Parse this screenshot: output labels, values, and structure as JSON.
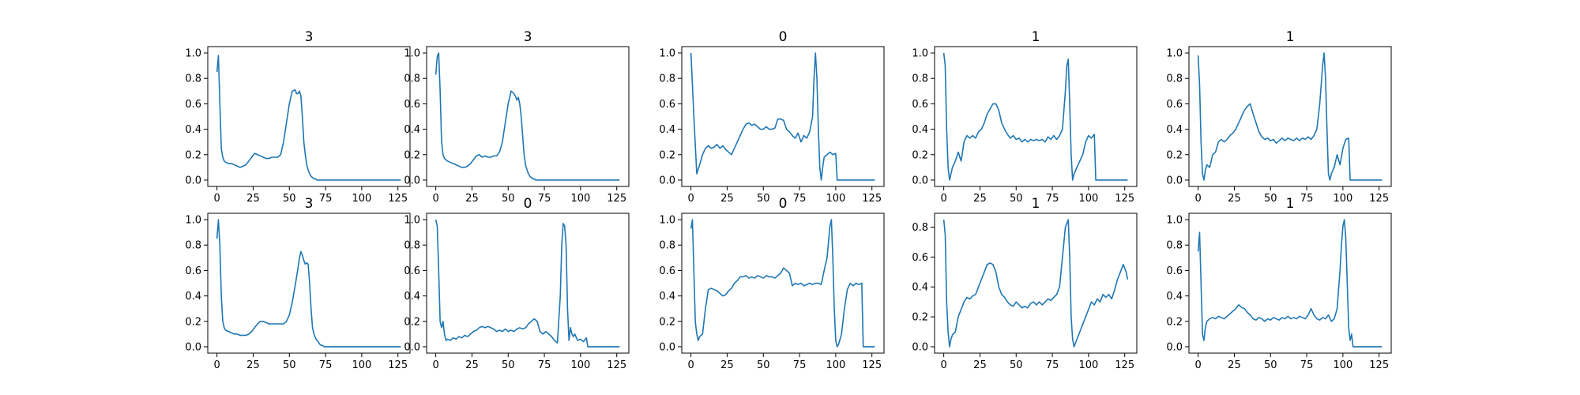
{
  "figure": {
    "line_color": "#1f77b4",
    "axes_color": "#000000"
  },
  "chart_data": [
    {
      "type": "line",
      "title": "3",
      "xlim": [
        -6.35,
        133.35
      ],
      "ylim": [
        -0.05,
        1.05
      ],
      "xticks": [
        "0",
        "25",
        "50",
        "75",
        "100",
        "125"
      ],
      "yticks": [
        "0.0",
        "0.2",
        "0.4",
        "0.6",
        "0.8",
        "1.0"
      ],
      "x": [
        0,
        1,
        2,
        3,
        4,
        5,
        6,
        8,
        10,
        12,
        14,
        16,
        18,
        20,
        22,
        24,
        26,
        28,
        30,
        32,
        34,
        36,
        38,
        40,
        42,
        44,
        46,
        48,
        50,
        52,
        54,
        55,
        56,
        57,
        58,
        59,
        60,
        61,
        62,
        63,
        64,
        65,
        66,
        67,
        68,
        69,
        70,
        71,
        72,
        127
      ],
      "y": [
        0.85,
        0.98,
        0.6,
        0.25,
        0.18,
        0.15,
        0.14,
        0.13,
        0.13,
        0.12,
        0.11,
        0.1,
        0.11,
        0.12,
        0.15,
        0.18,
        0.21,
        0.2,
        0.19,
        0.18,
        0.17,
        0.17,
        0.18,
        0.18,
        0.18,
        0.2,
        0.3,
        0.45,
        0.6,
        0.7,
        0.71,
        0.68,
        0.68,
        0.7,
        0.66,
        0.5,
        0.3,
        0.2,
        0.12,
        0.08,
        0.05,
        0.03,
        0.02,
        0.01,
        0.01,
        0.0,
        0.0,
        0.0,
        0.0,
        0.0
      ]
    },
    {
      "type": "line",
      "title": "3",
      "xlim": [
        -6.35,
        133.35
      ],
      "ylim": [
        -0.05,
        1.05
      ],
      "xticks": [
        "0",
        "25",
        "50",
        "75",
        "100",
        "125"
      ],
      "yticks": [
        "0.0",
        "0.2",
        "0.4",
        "0.6",
        "0.8",
        "1.0"
      ],
      "x": [
        0,
        1,
        2,
        3,
        4,
        5,
        6,
        8,
        10,
        12,
        14,
        16,
        18,
        20,
        22,
        24,
        26,
        28,
        30,
        32,
        34,
        36,
        38,
        40,
        42,
        44,
        46,
        48,
        50,
        52,
        54,
        55,
        56,
        57,
        58,
        59,
        60,
        61,
        62,
        63,
        64,
        65,
        66,
        67,
        68,
        69,
        70,
        71,
        72,
        127
      ],
      "y": [
        0.83,
        0.97,
        1.0,
        0.7,
        0.3,
        0.2,
        0.17,
        0.15,
        0.14,
        0.13,
        0.12,
        0.11,
        0.1,
        0.1,
        0.11,
        0.13,
        0.16,
        0.19,
        0.2,
        0.18,
        0.19,
        0.18,
        0.18,
        0.19,
        0.19,
        0.22,
        0.3,
        0.45,
        0.6,
        0.7,
        0.68,
        0.66,
        0.63,
        0.65,
        0.6,
        0.5,
        0.35,
        0.2,
        0.12,
        0.08,
        0.05,
        0.03,
        0.02,
        0.01,
        0.01,
        0.0,
        0.0,
        0.0,
        0.0,
        0.0
      ]
    },
    {
      "type": "line",
      "title": "0",
      "xlim": [
        -6.35,
        133.35
      ],
      "ylim": [
        -0.05,
        1.05
      ],
      "xticks": [
        "0",
        "25",
        "50",
        "75",
        "100",
        "125"
      ],
      "yticks": [
        "0.0",
        "0.2",
        "0.4",
        "0.6",
        "0.8",
        "1.0"
      ],
      "x": [
        0,
        2,
        4,
        6,
        8,
        10,
        12,
        14,
        16,
        18,
        20,
        22,
        24,
        26,
        28,
        30,
        32,
        34,
        36,
        38,
        40,
        42,
        44,
        46,
        48,
        50,
        52,
        54,
        56,
        58,
        60,
        62,
        64,
        66,
        68,
        70,
        72,
        74,
        76,
        78,
        80,
        82,
        84,
        85,
        86,
        87,
        88,
        89,
        90,
        91,
        92,
        94,
        96,
        98,
        100,
        101,
        127
      ],
      "y": [
        1.0,
        0.5,
        0.05,
        0.12,
        0.2,
        0.25,
        0.27,
        0.25,
        0.26,
        0.28,
        0.25,
        0.27,
        0.24,
        0.22,
        0.2,
        0.25,
        0.3,
        0.35,
        0.4,
        0.44,
        0.45,
        0.43,
        0.44,
        0.42,
        0.4,
        0.4,
        0.42,
        0.4,
        0.4,
        0.41,
        0.48,
        0.48,
        0.47,
        0.4,
        0.38,
        0.35,
        0.33,
        0.37,
        0.3,
        0.35,
        0.33,
        0.38,
        0.5,
        0.8,
        1.0,
        0.8,
        0.4,
        0.1,
        0.0,
        0.1,
        0.18,
        0.2,
        0.22,
        0.2,
        0.21,
        0.0,
        0.0
      ]
    },
    {
      "type": "line",
      "title": "1",
      "xlim": [
        -6.35,
        133.35
      ],
      "ylim": [
        -0.05,
        1.05
      ],
      "xticks": [
        "0",
        "25",
        "50",
        "75",
        "100",
        "125"
      ],
      "yticks": [
        "0.0",
        "0.2",
        "0.4",
        "0.6",
        "0.8",
        "1.0"
      ],
      "x": [
        0,
        1,
        2,
        3,
        4,
        5,
        6,
        8,
        10,
        12,
        14,
        16,
        18,
        20,
        22,
        24,
        26,
        28,
        30,
        32,
        34,
        36,
        38,
        40,
        42,
        44,
        46,
        48,
        50,
        52,
        54,
        56,
        58,
        60,
        62,
        64,
        66,
        68,
        70,
        72,
        74,
        76,
        78,
        80,
        82,
        84,
        85,
        86,
        87,
        88,
        89,
        90,
        92,
        94,
        96,
        98,
        100,
        102,
        104,
        105,
        127
      ],
      "y": [
        1.0,
        0.9,
        0.4,
        0.1,
        0.0,
        0.05,
        0.1,
        0.15,
        0.22,
        0.15,
        0.3,
        0.35,
        0.33,
        0.35,
        0.33,
        0.38,
        0.4,
        0.45,
        0.52,
        0.56,
        0.6,
        0.6,
        0.55,
        0.45,
        0.4,
        0.36,
        0.33,
        0.35,
        0.32,
        0.33,
        0.3,
        0.32,
        0.3,
        0.32,
        0.31,
        0.32,
        0.31,
        0.32,
        0.3,
        0.34,
        0.32,
        0.35,
        0.32,
        0.35,
        0.4,
        0.7,
        0.9,
        0.95,
        0.6,
        0.2,
        0.0,
        0.05,
        0.1,
        0.15,
        0.2,
        0.3,
        0.35,
        0.33,
        0.36,
        0.0,
        0.0
      ]
    },
    {
      "type": "line",
      "title": "1",
      "xlim": [
        -6.35,
        133.35
      ],
      "ylim": [
        -0.05,
        1.05
      ],
      "xticks": [
        "0",
        "25",
        "50",
        "75",
        "100",
        "125"
      ],
      "yticks": [
        "0.0",
        "0.2",
        "0.4",
        "0.6",
        "0.8",
        "1.0"
      ],
      "x": [
        0,
        1,
        2,
        3,
        4,
        5,
        6,
        8,
        10,
        12,
        14,
        16,
        18,
        20,
        22,
        24,
        26,
        28,
        30,
        32,
        34,
        36,
        38,
        40,
        42,
        44,
        46,
        48,
        50,
        52,
        54,
        56,
        58,
        60,
        62,
        64,
        66,
        68,
        70,
        72,
        74,
        76,
        78,
        80,
        82,
        84,
        86,
        87,
        88,
        89,
        90,
        91,
        92,
        94,
        96,
        98,
        100,
        102,
        104,
        105,
        127
      ],
      "y": [
        0.98,
        0.75,
        0.3,
        0.05,
        0.0,
        0.08,
        0.12,
        0.1,
        0.2,
        0.22,
        0.3,
        0.32,
        0.3,
        0.32,
        0.35,
        0.37,
        0.4,
        0.45,
        0.5,
        0.55,
        0.58,
        0.6,
        0.52,
        0.45,
        0.38,
        0.34,
        0.32,
        0.33,
        0.31,
        0.32,
        0.29,
        0.31,
        0.33,
        0.31,
        0.33,
        0.32,
        0.31,
        0.33,
        0.31,
        0.33,
        0.32,
        0.34,
        0.32,
        0.35,
        0.4,
        0.6,
        0.9,
        1.0,
        0.8,
        0.4,
        0.05,
        0.0,
        0.05,
        0.1,
        0.2,
        0.12,
        0.25,
        0.32,
        0.33,
        0.0,
        0.0
      ]
    },
    {
      "type": "line",
      "title": "3",
      "xlim": [
        -6.35,
        133.35
      ],
      "ylim": [
        -0.05,
        1.05
      ],
      "xticks": [
        "0",
        "25",
        "50",
        "75",
        "100",
        "125"
      ],
      "yticks": [
        "0.0",
        "0.2",
        "0.4",
        "0.6",
        "0.8",
        "1.0"
      ],
      "x": [
        0,
        1,
        2,
        3,
        4,
        5,
        6,
        8,
        10,
        12,
        14,
        16,
        18,
        20,
        22,
        24,
        26,
        28,
        30,
        32,
        34,
        36,
        38,
        40,
        42,
        44,
        46,
        48,
        50,
        52,
        54,
        56,
        57,
        58,
        59,
        60,
        61,
        62,
        63,
        64,
        65,
        66,
        67,
        68,
        69,
        70,
        71,
        72,
        73,
        74,
        75,
        76,
        127
      ],
      "y": [
        0.85,
        1.0,
        0.8,
        0.4,
        0.2,
        0.15,
        0.13,
        0.12,
        0.11,
        0.1,
        0.1,
        0.09,
        0.09,
        0.09,
        0.1,
        0.12,
        0.15,
        0.18,
        0.2,
        0.2,
        0.19,
        0.18,
        0.18,
        0.18,
        0.18,
        0.18,
        0.18,
        0.2,
        0.25,
        0.35,
        0.48,
        0.62,
        0.7,
        0.75,
        0.72,
        0.68,
        0.65,
        0.66,
        0.65,
        0.5,
        0.3,
        0.15,
        0.1,
        0.07,
        0.05,
        0.04,
        0.02,
        0.01,
        0.01,
        0.0,
        0.0,
        0.0,
        0.0
      ]
    },
    {
      "type": "line",
      "title": "0",
      "xlim": [
        -6.35,
        133.35
      ],
      "ylim": [
        -0.05,
        1.05
      ],
      "xticks": [
        "0",
        "25",
        "50",
        "75",
        "100",
        "125"
      ],
      "yticks": [
        "0.0",
        "0.2",
        "0.4",
        "0.6",
        "0.8",
        "1.0"
      ],
      "x": [
        0,
        1,
        2,
        3,
        4,
        5,
        6,
        7,
        8,
        10,
        12,
        14,
        16,
        18,
        20,
        22,
        24,
        26,
        28,
        30,
        32,
        34,
        36,
        38,
        40,
        42,
        44,
        46,
        48,
        50,
        52,
        54,
        56,
        58,
        60,
        62,
        64,
        66,
        68,
        70,
        72,
        74,
        76,
        78,
        80,
        82,
        84,
        86,
        87,
        88,
        89,
        90,
        91,
        92,
        93,
        94,
        95,
        96,
        98,
        100,
        102,
        104,
        105,
        106,
        127
      ],
      "y": [
        1.0,
        0.95,
        0.6,
        0.2,
        0.15,
        0.2,
        0.1,
        0.05,
        0.06,
        0.05,
        0.07,
        0.06,
        0.08,
        0.07,
        0.09,
        0.08,
        0.1,
        0.12,
        0.13,
        0.15,
        0.16,
        0.15,
        0.16,
        0.15,
        0.14,
        0.12,
        0.13,
        0.12,
        0.14,
        0.12,
        0.13,
        0.12,
        0.14,
        0.15,
        0.14,
        0.15,
        0.18,
        0.2,
        0.22,
        0.2,
        0.12,
        0.1,
        0.12,
        0.1,
        0.08,
        0.05,
        0.03,
        0.4,
        0.8,
        0.97,
        0.95,
        0.8,
        0.3,
        0.05,
        0.15,
        0.1,
        0.08,
        0.1,
        0.05,
        0.06,
        0.04,
        0.07,
        0.0,
        0.0,
        0.0
      ]
    },
    {
      "type": "line",
      "title": "0",
      "xlim": [
        -6.35,
        133.35
      ],
      "ylim": [
        -0.05,
        1.05
      ],
      "xticks": [
        "0",
        "25",
        "50",
        "75",
        "100",
        "125"
      ],
      "yticks": [
        "0.0",
        "0.2",
        "0.4",
        "0.6",
        "0.8",
        "1.0"
      ],
      "x": [
        0,
        1,
        2,
        3,
        4,
        5,
        6,
        8,
        10,
        12,
        14,
        16,
        18,
        20,
        22,
        24,
        26,
        28,
        30,
        32,
        34,
        36,
        38,
        40,
        42,
        44,
        46,
        48,
        50,
        52,
        54,
        56,
        58,
        60,
        62,
        64,
        66,
        68,
        70,
        72,
        74,
        76,
        78,
        80,
        82,
        84,
        86,
        88,
        90,
        92,
        94,
        96,
        97,
        98,
        99,
        100,
        101,
        102,
        104,
        106,
        108,
        110,
        112,
        114,
        116,
        118,
        119,
        120,
        127
      ],
      "y": [
        0.93,
        1.0,
        0.6,
        0.2,
        0.1,
        0.05,
        0.08,
        0.1,
        0.3,
        0.45,
        0.46,
        0.45,
        0.44,
        0.42,
        0.4,
        0.41,
        0.44,
        0.46,
        0.5,
        0.52,
        0.55,
        0.55,
        0.56,
        0.54,
        0.55,
        0.54,
        0.56,
        0.55,
        0.54,
        0.56,
        0.55,
        0.55,
        0.54,
        0.56,
        0.58,
        0.62,
        0.6,
        0.58,
        0.48,
        0.5,
        0.49,
        0.5,
        0.48,
        0.49,
        0.5,
        0.49,
        0.5,
        0.5,
        0.49,
        0.6,
        0.7,
        0.95,
        1.0,
        0.7,
        0.3,
        0.05,
        0.0,
        0.02,
        0.1,
        0.3,
        0.45,
        0.5,
        0.48,
        0.5,
        0.49,
        0.5,
        0.0,
        0.0,
        0.0
      ]
    },
    {
      "type": "line",
      "title": "1",
      "xlim": [
        -6.35,
        133.35
      ],
      "ylim": [
        -0.0425,
        0.8925
      ],
      "xticks": [
        "0",
        "25",
        "50",
        "75",
        "100",
        "125"
      ],
      "yticks": [
        "0.0",
        "0.2",
        "0.4",
        "0.6",
        "0.8"
      ],
      "x": [
        0,
        1,
        2,
        3,
        4,
        5,
        6,
        8,
        10,
        12,
        14,
        16,
        18,
        20,
        22,
        24,
        26,
        28,
        30,
        32,
        34,
        36,
        38,
        40,
        42,
        44,
        46,
        48,
        50,
        52,
        54,
        56,
        58,
        60,
        62,
        64,
        66,
        68,
        70,
        72,
        74,
        76,
        78,
        80,
        82,
        84,
        86,
        87,
        88,
        89,
        90,
        92,
        94,
        96,
        98,
        100,
        102,
        104,
        106,
        108,
        110,
        112,
        114,
        116,
        118,
        120,
        122,
        124,
        126,
        127
      ],
      "y": [
        0.85,
        0.75,
        0.3,
        0.1,
        0.0,
        0.05,
        0.08,
        0.1,
        0.2,
        0.25,
        0.3,
        0.33,
        0.32,
        0.34,
        0.35,
        0.4,
        0.45,
        0.5,
        0.55,
        0.56,
        0.55,
        0.5,
        0.4,
        0.35,
        0.33,
        0.3,
        0.28,
        0.27,
        0.3,
        0.28,
        0.26,
        0.27,
        0.26,
        0.29,
        0.3,
        0.28,
        0.3,
        0.28,
        0.3,
        0.32,
        0.31,
        0.33,
        0.35,
        0.4,
        0.6,
        0.8,
        0.85,
        0.6,
        0.2,
        0.05,
        0.0,
        0.05,
        0.1,
        0.15,
        0.2,
        0.25,
        0.3,
        0.28,
        0.32,
        0.3,
        0.35,
        0.33,
        0.35,
        0.32,
        0.38,
        0.45,
        0.5,
        0.55,
        0.5,
        0.45
      ]
    },
    {
      "type": "line",
      "title": "1",
      "xlim": [
        -6.35,
        133.35
      ],
      "ylim": [
        -0.05,
        1.05
      ],
      "xticks": [
        "0",
        "25",
        "50",
        "75",
        "100",
        "125"
      ],
      "yticks": [
        "0.0",
        "0.2",
        "0.4",
        "0.6",
        "0.8",
        "1.0"
      ],
      "x": [
        0,
        1,
        2,
        3,
        4,
        5,
        6,
        8,
        10,
        12,
        14,
        16,
        18,
        20,
        22,
        24,
        26,
        28,
        30,
        32,
        34,
        36,
        38,
        40,
        42,
        44,
        46,
        48,
        50,
        52,
        54,
        56,
        58,
        60,
        62,
        64,
        66,
        68,
        70,
        72,
        74,
        76,
        78,
        80,
        82,
        84,
        86,
        88,
        90,
        92,
        94,
        96,
        98,
        99,
        100,
        101,
        102,
        103,
        104,
        105,
        106,
        107,
        108,
        127
      ],
      "y": [
        0.75,
        0.9,
        0.5,
        0.1,
        0.05,
        0.15,
        0.2,
        0.22,
        0.23,
        0.22,
        0.24,
        0.23,
        0.22,
        0.24,
        0.26,
        0.28,
        0.3,
        0.33,
        0.31,
        0.3,
        0.27,
        0.25,
        0.22,
        0.21,
        0.23,
        0.22,
        0.2,
        0.22,
        0.21,
        0.23,
        0.22,
        0.21,
        0.23,
        0.22,
        0.24,
        0.22,
        0.23,
        0.22,
        0.24,
        0.23,
        0.22,
        0.25,
        0.3,
        0.25,
        0.22,
        0.21,
        0.23,
        0.22,
        0.25,
        0.2,
        0.22,
        0.3,
        0.6,
        0.8,
        0.95,
        1.0,
        0.85,
        0.5,
        0.15,
        0.05,
        0.1,
        0.0,
        0.0,
        0.0
      ]
    }
  ]
}
